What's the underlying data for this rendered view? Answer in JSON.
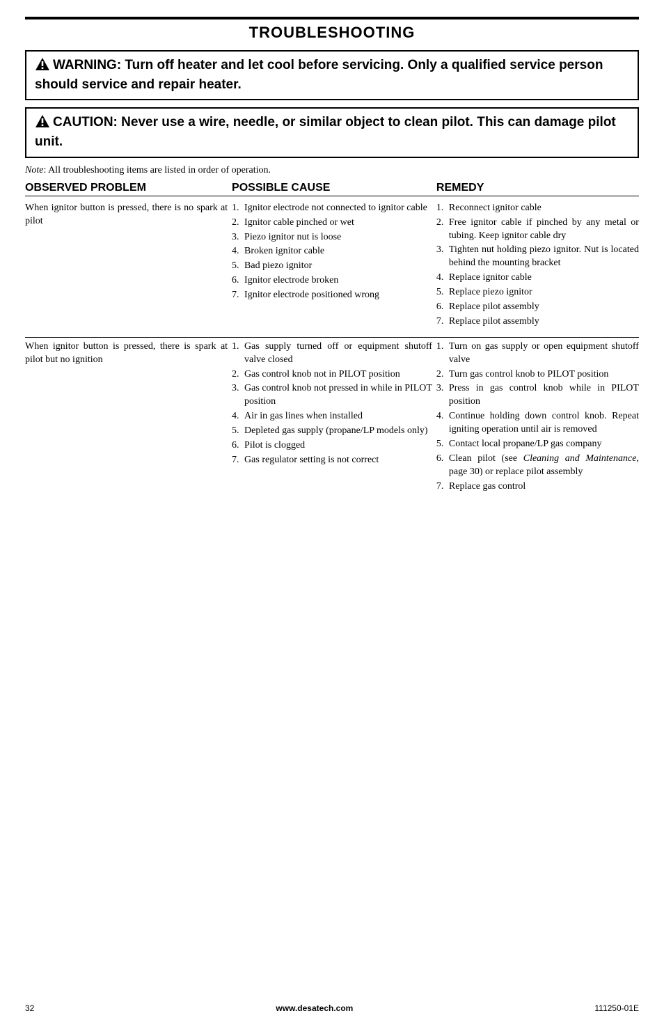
{
  "title": "TROUBLESHOOTING",
  "warning1": "WARNING: Turn off heater and let cool before servicing. Only a qualified service person should service and repair heater.",
  "warning2": "CAUTION: Never use a wire, needle, or similar object to clean pilot. This can damage pilot unit.",
  "note_label": "Note",
  "note_body": ": All troubleshooting items are listed in order of operation.",
  "headers": {
    "observed": "OBSERVED PROBLEM",
    "cause": "POSSIBLE CAUSE",
    "remedy": "REMEDY"
  },
  "blocks": [
    {
      "observed": "When ignitor button is pressed, there is no spark at pilot",
      "causes": [
        "Ignitor electrode not connected to ignitor cable",
        "Ignitor cable pinched or wet",
        "Piezo ignitor nut is loose",
        "Broken ignitor cable",
        "Bad piezo ignitor",
        "Ignitor electrode broken",
        "Ignitor electrode positioned wrong"
      ],
      "remedies": [
        "Reconnect ignitor cable",
        "Free ignitor cable if pinched by any metal or tubing. Keep ignitor cable dry",
        "Tighten nut holding piezo ignitor. Nut is located behind the mounting bracket",
        "Replace ignitor cable",
        "Replace piezo ignitor",
        "Replace pilot assembly",
        "Replace pilot assembly"
      ]
    },
    {
      "observed": "When ignitor button is pressed, there is spark at pilot but no ignition",
      "causes": [
        "Gas supply turned off or equipment shutoff valve closed",
        "Gas control knob not in PILOT position",
        "Gas control knob not pressed in while in PILOT position",
        "Air in gas lines when installed",
        "Depleted gas supply (propane/LP models only)",
        "Pilot is clogged",
        "Gas regulator setting is not correct"
      ],
      "remedies": [
        "Turn on gas supply or open equipment shutoff valve",
        "Turn gas control knob to PILOT position",
        "Press in gas control knob while in PILOT position",
        "Continue holding down control knob. Repeat igniting operation until air is removed",
        "Contact local propane/LP gas company",
        "Clean pilot (see <span class=\"italic\">Cleaning and Maintenance</span>, page 30) or replace pilot assembly",
        "Replace gas control"
      ]
    }
  ],
  "footer": {
    "page": "32",
    "url": "www.desatech.com",
    "code": "111250-01E"
  }
}
